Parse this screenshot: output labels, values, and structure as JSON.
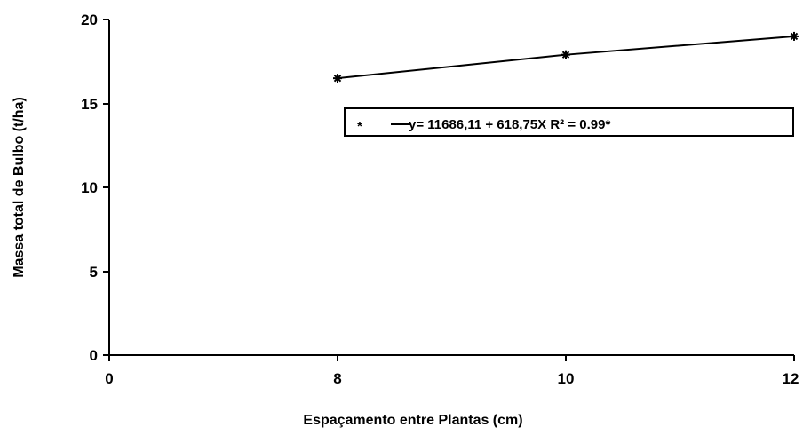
{
  "chart_data": {
    "type": "line",
    "xlabel": "Espaçamento entre Plantas (cm)",
    "ylabel": "Massa total de Bulbo (t/ha)",
    "x_ticks": [
      "0",
      "8",
      "10",
      "12"
    ],
    "y_ticks": [
      "0",
      "5",
      "10",
      "15",
      "20"
    ],
    "ylim": [
      0,
      20
    ],
    "grid": false,
    "legend_position": "upper-right",
    "series": [
      {
        "x": [
          8,
          10,
          12
        ],
        "y": [
          16.5,
          17.9,
          19.0
        ],
        "marker": "asterisk",
        "color": "#000000"
      }
    ],
    "legend": {
      "marker_symbol": "*",
      "equation": "y= 11686,11 + 618,75X  R² = 0.99*"
    }
  }
}
